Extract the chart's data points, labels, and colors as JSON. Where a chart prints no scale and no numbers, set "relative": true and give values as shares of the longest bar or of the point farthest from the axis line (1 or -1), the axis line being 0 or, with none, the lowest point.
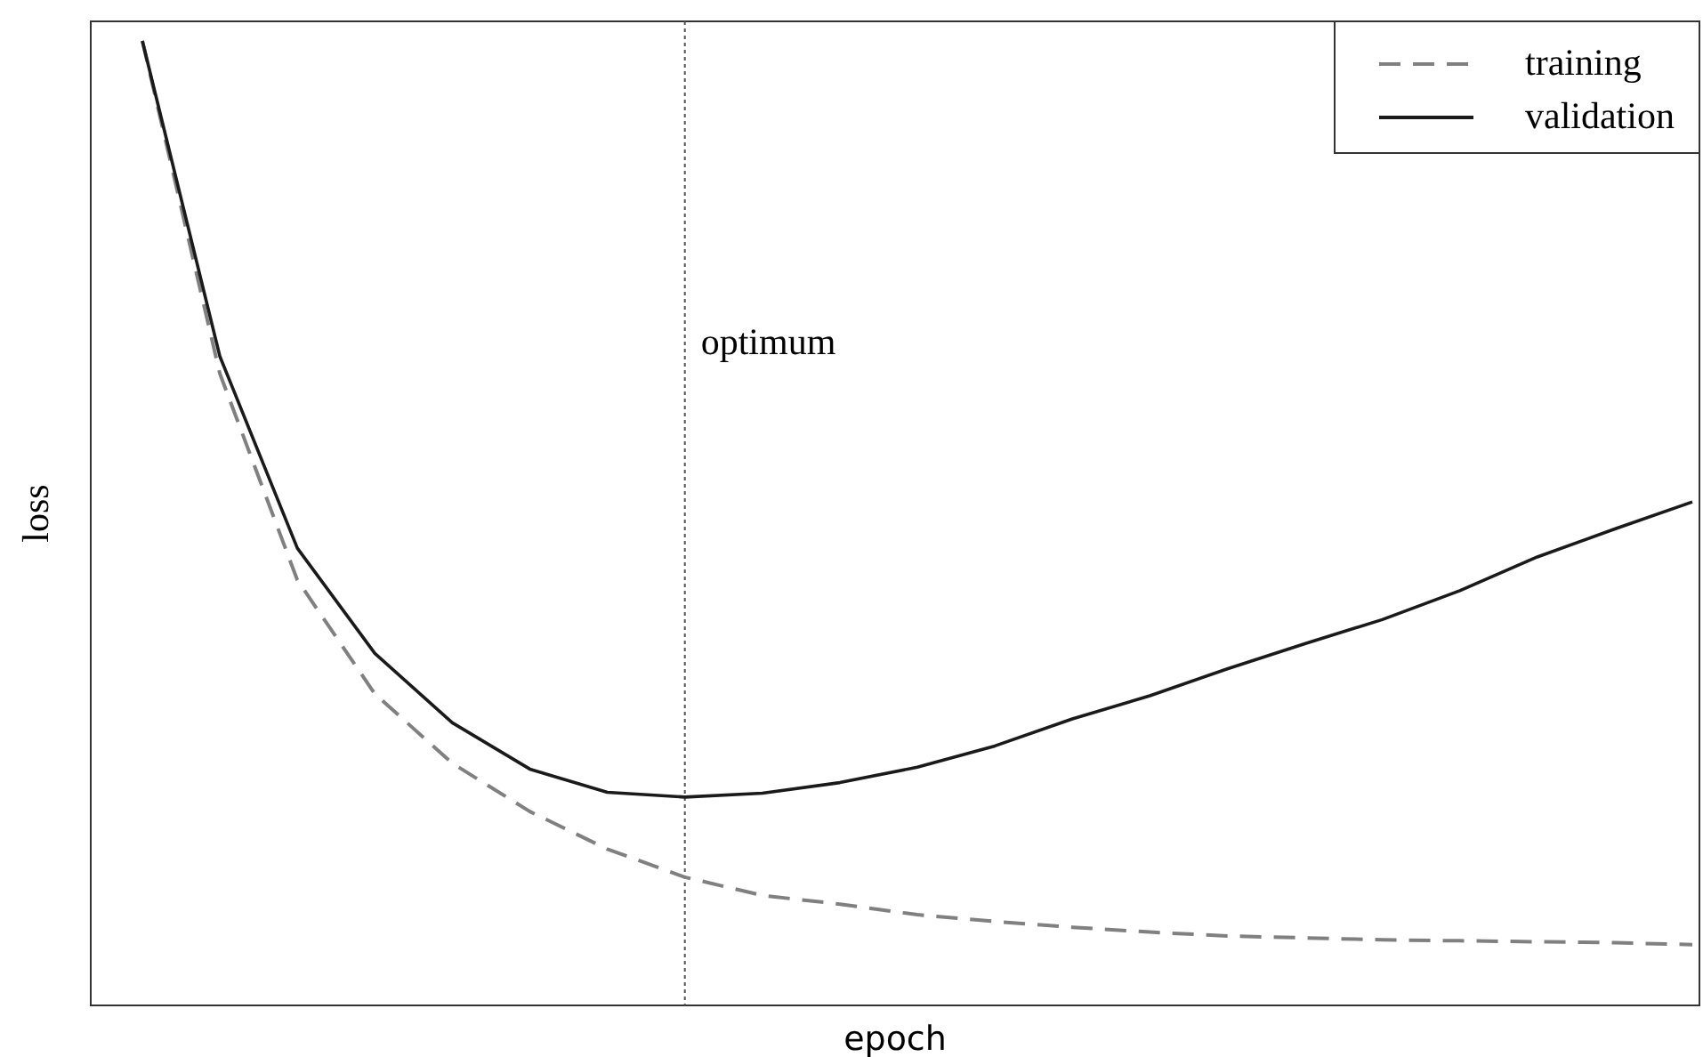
{
  "chart_data": {
    "type": "line",
    "xlabel": "epoch",
    "ylabel": "loss",
    "relative": true,
    "categories": [
      null,
      null,
      null,
      null,
      null,
      null,
      null,
      null,
      null,
      null,
      null,
      null,
      null,
      null,
      null,
      null,
      null,
      null,
      null,
      null,
      null
    ],
    "legend": "top right",
    "series": [
      {
        "name": "training",
        "color": "#808080",
        "line_style": "dashed",
        "values": [
          1.0,
          0.655,
          0.441,
          0.323,
          0.251,
          0.201,
          0.162,
          0.133,
          0.114,
          0.105,
          0.094,
          0.087,
          0.081,
          0.076,
          0.072,
          0.07,
          0.068,
          0.067,
          0.066,
          0.065,
          0.063
        ]
      },
      {
        "name": "validation",
        "color": "#1a1a1a",
        "line_style": "solid",
        "values": [
          1.0,
          0.673,
          0.474,
          0.365,
          0.293,
          0.245,
          0.221,
          0.216,
          0.22,
          0.231,
          0.247,
          0.269,
          0.297,
          0.321,
          0.349,
          0.375,
          0.4,
          0.43,
          0.465,
          0.494,
          0.522
        ]
      }
    ],
    "ref_lines": [
      {
        "axis": "x",
        "label": "optimum",
        "color": "#555555",
        "line_style": "dotted"
      }
    ]
  }
}
